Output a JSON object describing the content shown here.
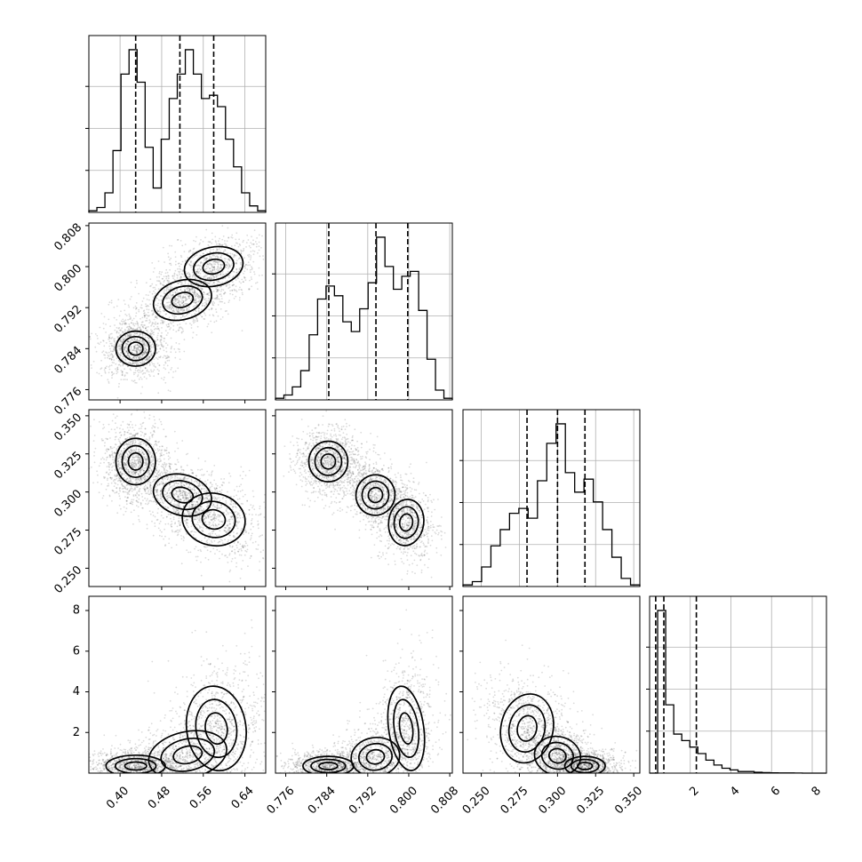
{
  "chart_data": {
    "type": "corner",
    "grid": true,
    "colors": {
      "points": "#000000",
      "contour_line": "#000000",
      "grid": "#b0b0b0",
      "density_light": "#e0e0e0",
      "density_mid": "#9a9a9a",
      "density_dark": "#3a3a3a"
    },
    "parameters": [
      {
        "index": 0,
        "range": [
          0.34,
          0.68
        ],
        "ticks": [
          "0.40",
          "0.48",
          "0.56",
          "0.64"
        ],
        "tick_values": [
          0.4,
          0.48,
          0.56,
          0.64
        ],
        "quantiles": [
          0.43,
          0.515,
          0.58
        ]
      },
      {
        "index": 1,
        "range": [
          0.774,
          0.8085
        ],
        "ticks": [
          "0.776",
          "0.784",
          "0.792",
          "0.800",
          "0.808"
        ],
        "tick_values": [
          0.776,
          0.784,
          0.792,
          0.8,
          0.808
        ],
        "quantiles": [
          0.7844,
          0.7936,
          0.7998
        ]
      },
      {
        "index": 2,
        "range": [
          0.238,
          0.354
        ],
        "ticks": [
          "0.250",
          "0.275",
          "0.300",
          "0.325",
          "0.350"
        ],
        "tick_values": [
          0.25,
          0.275,
          0.3,
          0.325,
          0.35
        ],
        "quantiles": [
          0.28,
          0.3,
          0.318
        ]
      },
      {
        "index": 3,
        "range": [
          0.0,
          8.7
        ],
        "ticks": [
          "2",
          "4",
          "6",
          "8"
        ],
        "tick_values": [
          2,
          4,
          6,
          8
        ],
        "quantiles": [
          0.3,
          0.7,
          2.3
        ]
      }
    ],
    "histograms": [
      {
        "param": 0,
        "bins": [
          0.34,
          0.68
        ],
        "counts": [
          1,
          3,
          12,
          38,
          85,
          100,
          80,
          40,
          15,
          45,
          70,
          85,
          100,
          85,
          70,
          72,
          65,
          45,
          28,
          12,
          4,
          1
        ]
      },
      {
        "param": 1,
        "bins": [
          0.774,
          0.8085
        ],
        "counts": [
          1,
          3,
          8,
          18,
          40,
          62,
          70,
          64,
          48,
          42,
          56,
          72,
          100,
          82,
          68,
          76,
          79,
          55,
          25,
          6,
          1
        ]
      },
      {
        "param": 2,
        "bins": [
          0.238,
          0.354
        ],
        "counts": [
          1,
          3,
          12,
          25,
          35,
          45,
          48,
          42,
          65,
          88,
          100,
          70,
          58,
          66,
          52,
          35,
          18,
          5,
          1
        ]
      },
      {
        "param": 3,
        "bins": [
          0.0,
          8.7
        ],
        "counts": [
          0,
          100,
          42,
          24,
          20,
          16,
          12,
          8,
          5,
          3,
          2,
          1,
          1,
          0.5,
          0.3,
          0.2,
          0.1,
          0.1,
          0.05,
          0,
          0,
          0
        ]
      }
    ],
    "density_modes": [
      {
        "x": 0,
        "y": 1,
        "modes": [
          {
            "center": [
              0.43,
              0.784
            ],
            "sx": 0.02,
            "sy": 0.0018,
            "rho": 0,
            "w": 0.45
          },
          {
            "center": [
              0.52,
              0.7935
            ],
            "sx": 0.03,
            "sy": 0.002,
            "rho": 0.4,
            "w": 0.35
          },
          {
            "center": [
              0.58,
              0.8
            ],
            "sx": 0.03,
            "sy": 0.002,
            "rho": 0.3,
            "w": 0.3
          }
        ]
      },
      {
        "x": 0,
        "y": 2,
        "modes": [
          {
            "center": [
              0.43,
              0.32
            ],
            "sx": 0.02,
            "sy": 0.008,
            "rho": 0,
            "w": 0.45
          },
          {
            "center": [
              0.52,
              0.298
            ],
            "sx": 0.03,
            "sy": 0.007,
            "rho": -0.4,
            "w": 0.35
          },
          {
            "center": [
              0.58,
              0.282
            ],
            "sx": 0.032,
            "sy": 0.009,
            "rho": -0.3,
            "w": 0.3
          }
        ]
      },
      {
        "x": 0,
        "y": 3,
        "modes": [
          {
            "center": [
              0.43,
              0.35
            ],
            "sx": 0.03,
            "sy": 0.28,
            "rho": 0,
            "w": 0.45
          },
          {
            "center": [
              0.53,
              0.9
            ],
            "sx": 0.04,
            "sy": 0.6,
            "rho": 0.3,
            "w": 0.3
          },
          {
            "center": [
              0.585,
              2.2
            ],
            "sx": 0.03,
            "sy": 1.1,
            "rho": 0.2,
            "w": 0.3
          }
        ]
      },
      {
        "x": 1,
        "y": 2,
        "modes": [
          {
            "center": [
              0.7843,
              0.32
            ],
            "sx": 0.002,
            "sy": 0.007,
            "rho": 0,
            "w": 0.45
          },
          {
            "center": [
              0.7935,
              0.298
            ],
            "sx": 0.002,
            "sy": 0.007,
            "rho": -0.3,
            "w": 0.35
          },
          {
            "center": [
              0.7995,
              0.28
            ],
            "sx": 0.0018,
            "sy": 0.008,
            "rho": -0.2,
            "w": 0.3
          }
        ]
      },
      {
        "x": 1,
        "y": 3,
        "modes": [
          {
            "center": [
              0.7843,
              0.35
            ],
            "sx": 0.0026,
            "sy": 0.25,
            "rho": 0,
            "w": 0.45
          },
          {
            "center": [
              0.7935,
              0.8
            ],
            "sx": 0.0025,
            "sy": 0.5,
            "rho": 0.2,
            "w": 0.3
          },
          {
            "center": [
              0.7995,
              2.2
            ],
            "sx": 0.0018,
            "sy": 1.1,
            "rho": 0.2,
            "w": 0.3
          }
        ]
      },
      {
        "x": 2,
        "y": 3,
        "modes": [
          {
            "center": [
              0.28,
              2.2
            ],
            "sx": 0.009,
            "sy": 0.9,
            "rho": -0.3,
            "w": 0.35
          },
          {
            "center": [
              0.3,
              0.85
            ],
            "sx": 0.008,
            "sy": 0.5,
            "rho": -0.3,
            "w": 0.35
          },
          {
            "center": [
              0.318,
              0.35
            ],
            "sx": 0.007,
            "sy": 0.25,
            "rho": 0,
            "w": 0.4
          }
        ]
      }
    ]
  }
}
